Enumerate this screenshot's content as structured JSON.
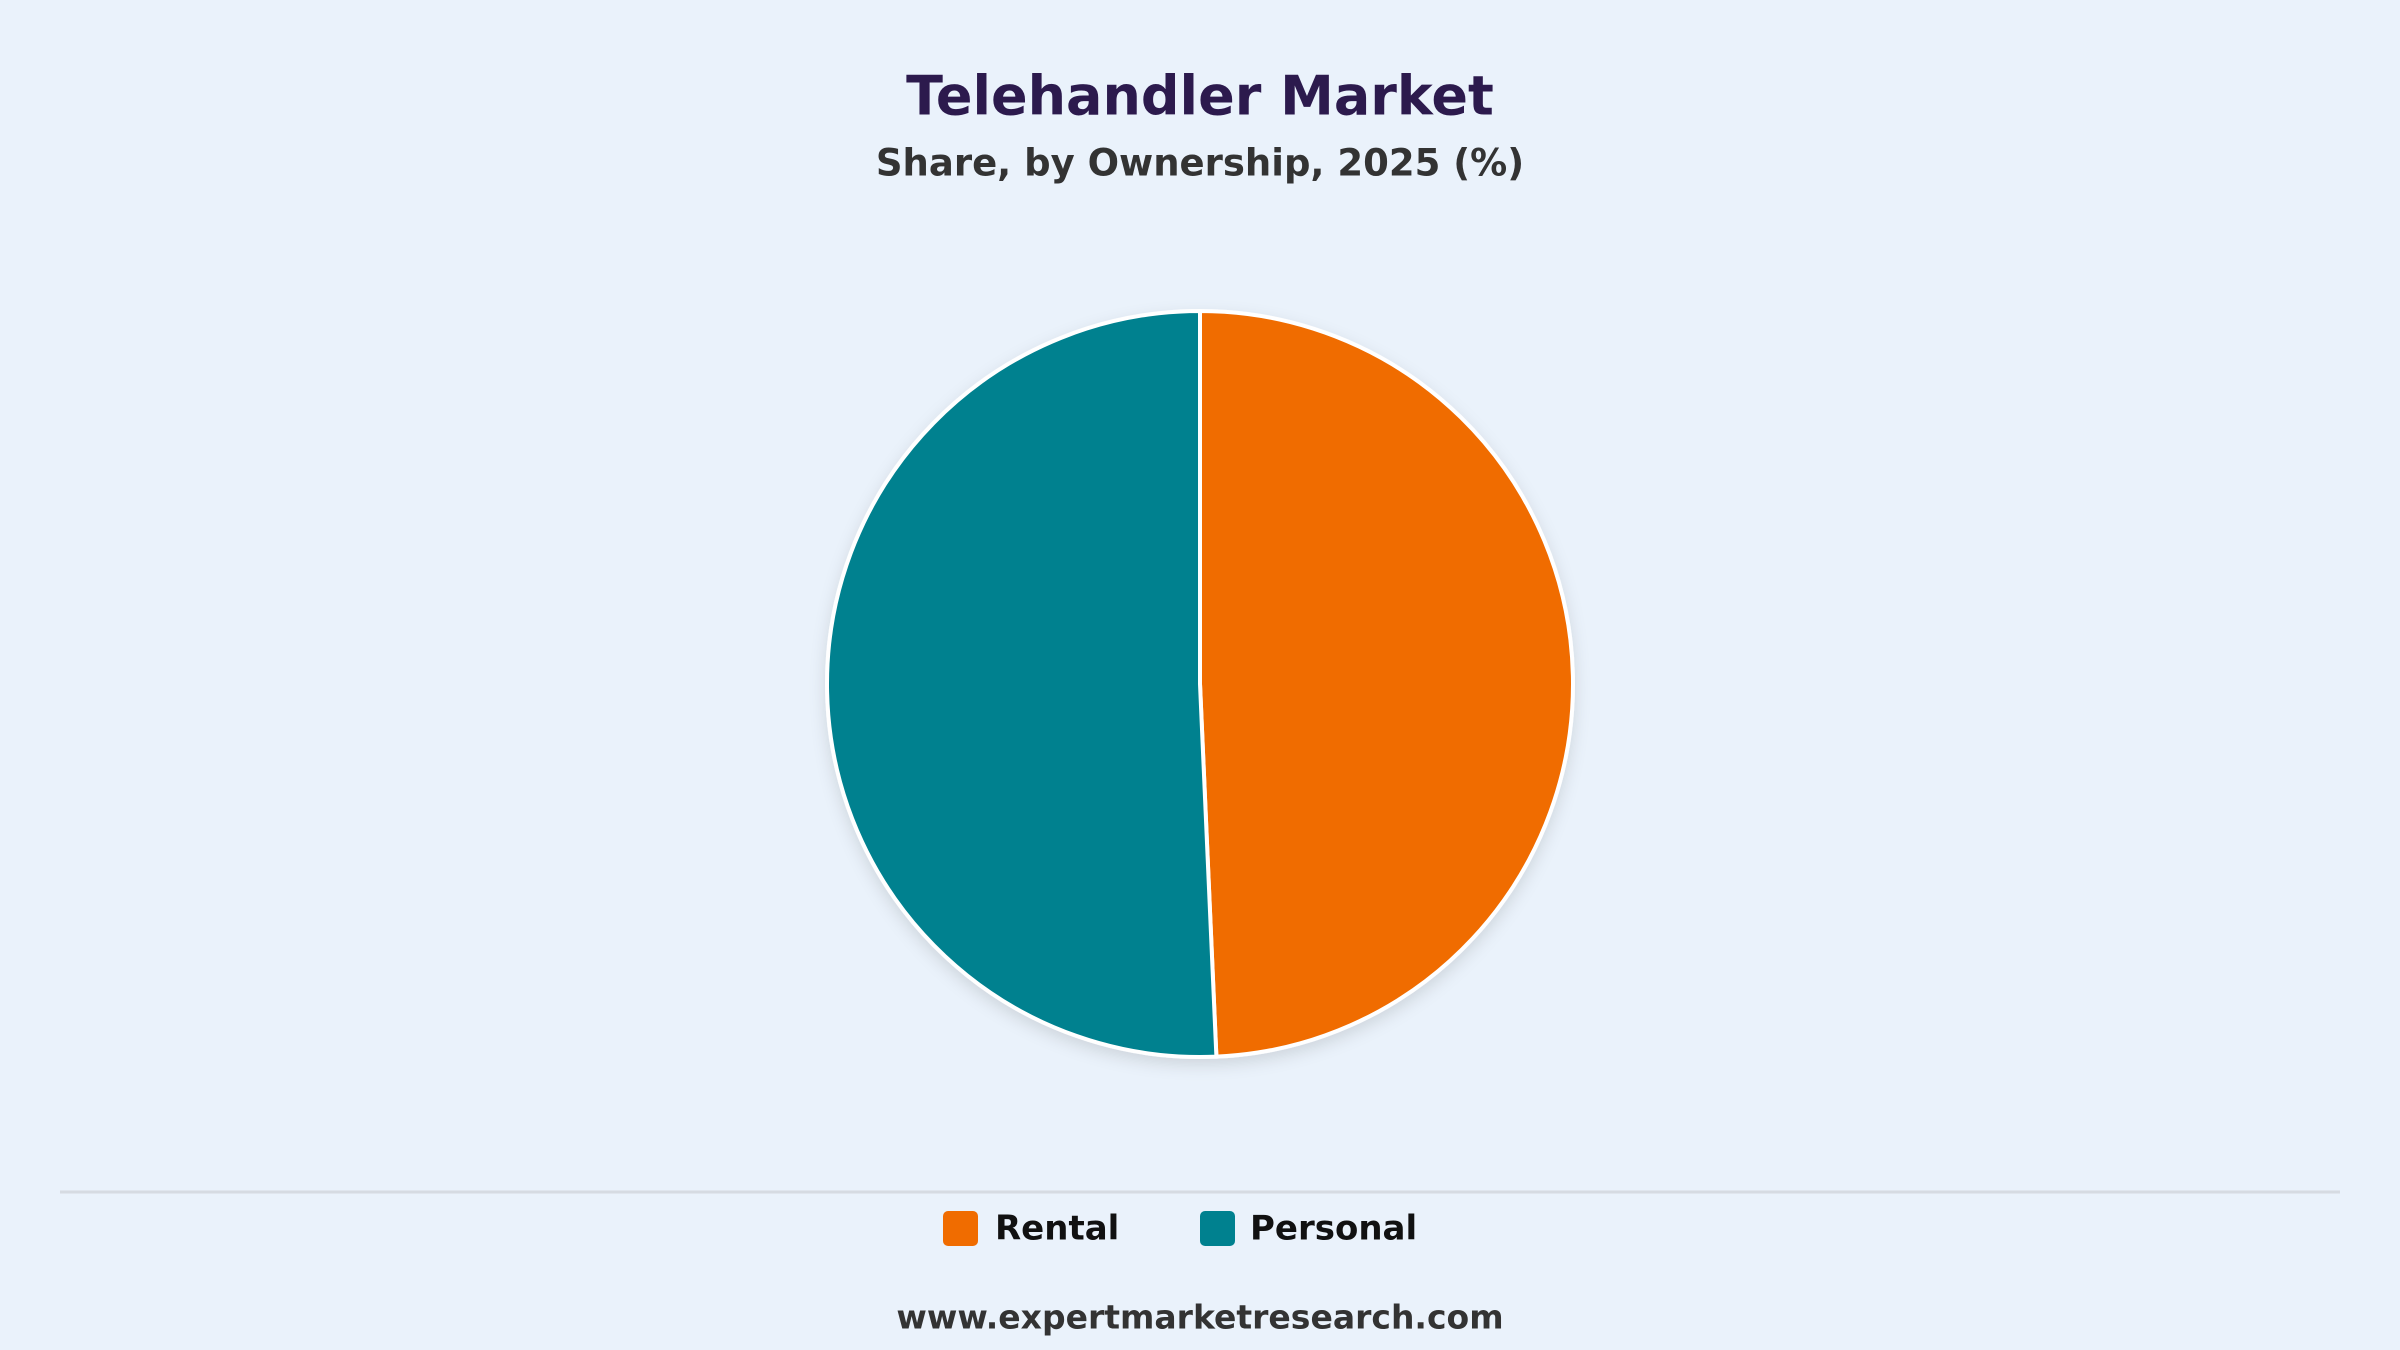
{
  "chart_data": {
    "type": "pie",
    "title": "Telehandler Market",
    "subtitle": "Share, by Ownership, 2025 (%)",
    "categories": [
      "Rental",
      "Personal"
    ],
    "values": [
      49.3,
      50.7
    ],
    "colors": [
      "#f06c00",
      "#00818f"
    ],
    "source": "www.expertmarketresearch.com"
  }
}
